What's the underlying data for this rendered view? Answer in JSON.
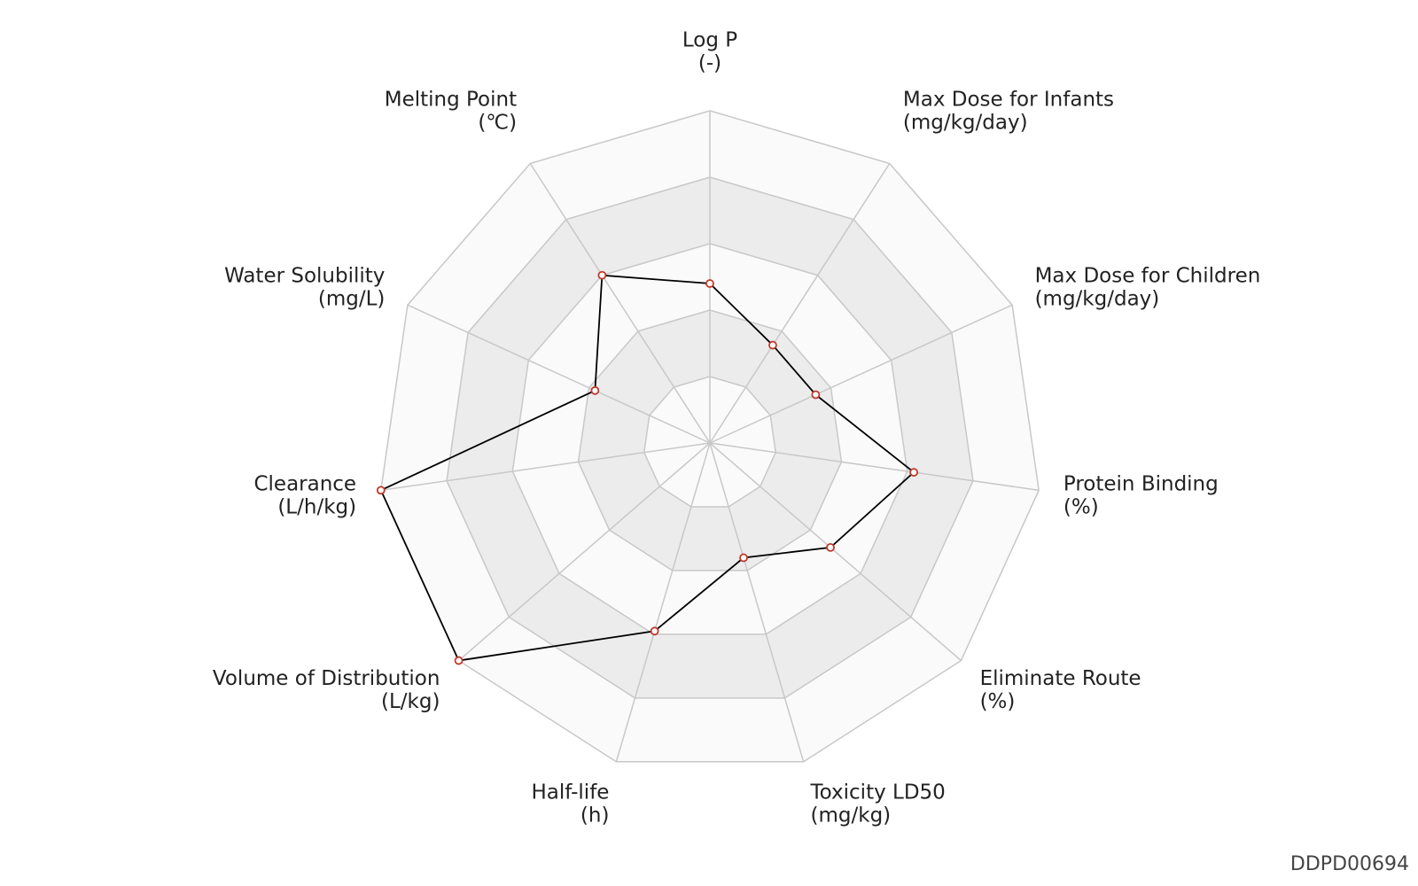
{
  "chart_data": {
    "type": "radar",
    "categories": [
      "Log P",
      "Max Dose for Infants",
      "Max Dose for Children",
      "Protein Binding",
      "Eliminate Route",
      "Toxicity LD50",
      "Half-life",
      "Volume of Distribution",
      "Clearance",
      "Water Solubility",
      "Melting Point"
    ],
    "units": [
      "(-)",
      "(mg/kg/day)",
      "(mg/kg/day)",
      "(%)",
      "(%)",
      "(mg/kg)",
      "(h)",
      "(L/kg)",
      "(L/h/kg)",
      "(mg/L)",
      "(℃)"
    ],
    "values": [
      0.48,
      0.35,
      0.35,
      0.62,
      0.48,
      0.36,
      0.59,
      1.0,
      1.0,
      0.38,
      0.6
    ],
    "rlim": [
      0,
      1
    ],
    "rticks": [
      0.2,
      0.4,
      0.6,
      0.8,
      1.0
    ],
    "color": "#000000",
    "marker_color": "#c0392b",
    "band_colors": [
      "#fafafa",
      "#ececec"
    ],
    "grid_color": "#c8c8c8"
  },
  "footer": "DDPD00694"
}
